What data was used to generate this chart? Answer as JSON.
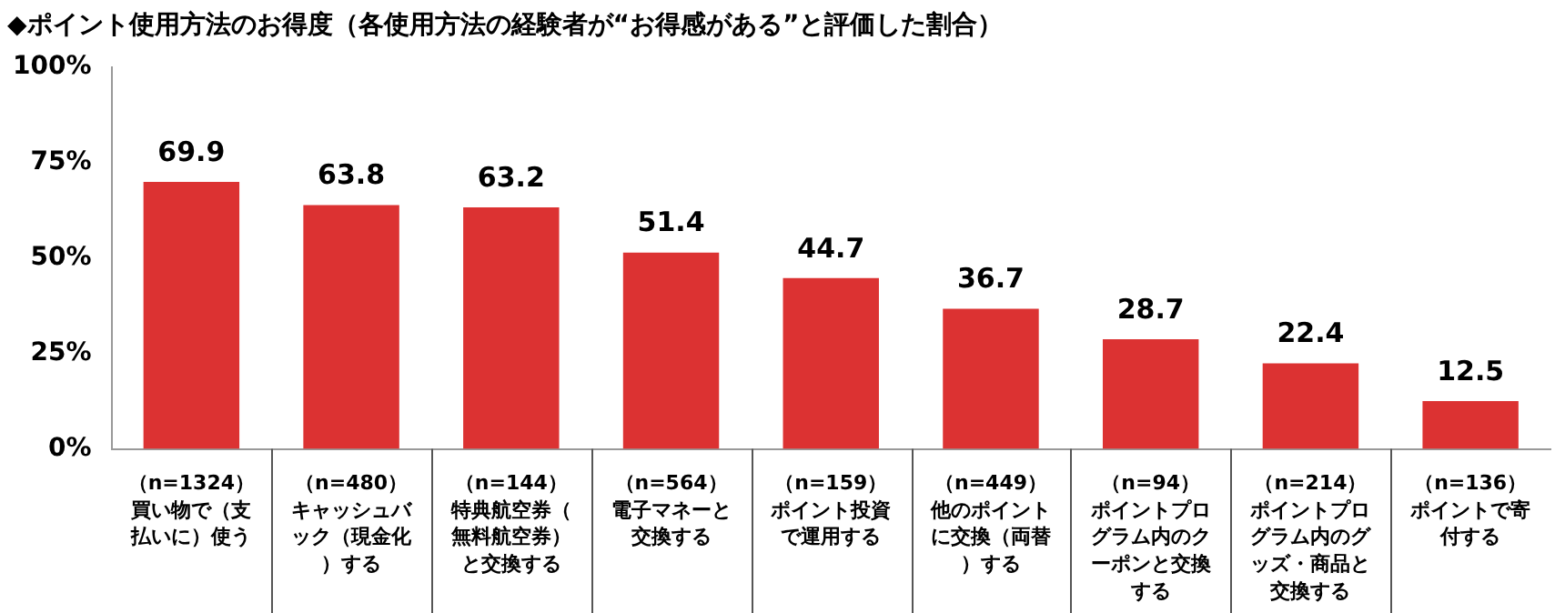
{
  "chart_data": {
    "type": "bar",
    "title": "◆ポイント使用方法のお得度（各使用方法の経験者が“お得感がある”と評価した割合）",
    "categories": [
      "（n=1324）買い物で（支払いに）使う",
      "（n=480）キャッシュバック（現金化）する",
      "（n=144）特典航空券（無料航空券）と交換する",
      "（n=564）電子マネーと交換する",
      "（n=159）ポイント投資で運用する",
      "（n=449）他のポイントに交換（両替）する",
      "（n=94）ポイントプログラム内のクーポンと交換する",
      "（n=214）ポイントプログラム内のグッズ・商品と交換する",
      "（n=136）ポイントで寄付する"
    ],
    "values": [
      69.9,
      63.8,
      63.2,
      51.4,
      44.7,
      36.7,
      28.7,
      22.4,
      12.5
    ],
    "color": "#dc3232",
    "ylim": [
      0,
      100
    ],
    "yticks": [
      {
        "value": 0,
        "label": "0%"
      },
      {
        "value": 25,
        "label": "25%"
      },
      {
        "value": 50,
        "label": "50%"
      },
      {
        "value": 75,
        "label": "75%"
      },
      {
        "value": 100,
        "label": "100%"
      }
    ],
    "grid": false,
    "legend": false,
    "data_labels": true
  }
}
